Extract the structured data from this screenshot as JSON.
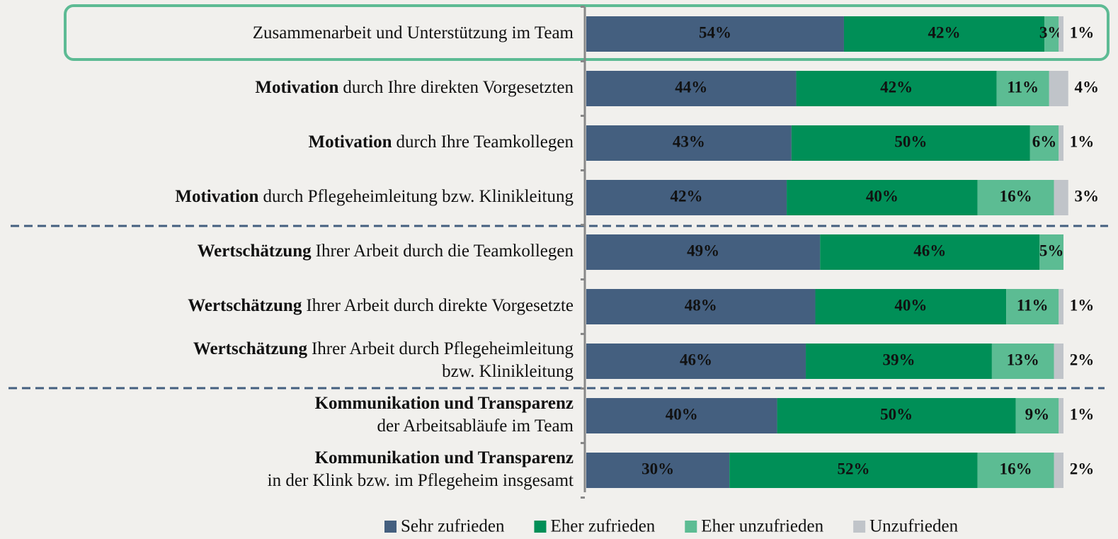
{
  "chart_data": {
    "type": "stacked-bar-horizontal",
    "categories": [
      [
        [
          {
            "text": "Zusammenarbeit und Unterstützung im Team",
            "bold": false
          }
        ]
      ],
      [
        [
          {
            "text": "Motivation",
            "bold": true
          },
          {
            "text": "durch Ihre direkten Vorgesetzten",
            "bold": false
          }
        ]
      ],
      [
        [
          {
            "text": "Motivation",
            "bold": true
          },
          {
            "text": "durch Ihre Teamkollegen",
            "bold": false
          }
        ]
      ],
      [
        [
          {
            "text": "Motivation",
            "bold": true
          },
          {
            "text": "durch Pflegeheimleitung bzw. Klinikleitung",
            "bold": false
          }
        ]
      ],
      [
        [
          {
            "text": "Wertschätzung",
            "bold": true
          },
          {
            "text": "Ihrer Arbeit durch die Teamkollegen",
            "bold": false
          }
        ]
      ],
      [
        [
          {
            "text": "Wertschätzung",
            "bold": true
          },
          {
            "text": "Ihrer Arbeit durch direkte Vorgesetzte",
            "bold": false
          }
        ]
      ],
      [
        [
          {
            "text": "Wertschätzung",
            "bold": true
          },
          {
            "text": "Ihrer Arbeit durch Pflegeheimleitung",
            "bold": false
          }
        ],
        [
          {
            "text": "bzw. Klinikleitung",
            "bold": false
          }
        ]
      ],
      [
        [
          {
            "text": "Kommunikation und Transparenz",
            "bold": true
          }
        ],
        [
          {
            "text": "der Arbeitsabläufe im Team",
            "bold": false
          }
        ]
      ],
      [
        [
          {
            "text": "Kommunikation und Transparenz",
            "bold": true
          }
        ],
        [
          {
            "text": "in der Klink bzw. im Pflegeheim insgesamt",
            "bold": false
          }
        ]
      ]
    ],
    "xlim": [
      0,
      100
    ],
    "series": [
      {
        "name": "Sehr zufrieden",
        "color": "#445f7f",
        "values": [
          54,
          44,
          43,
          42,
          49,
          48,
          46,
          40,
          30
        ],
        "value_labels": [
          "54%",
          "44%",
          "43%",
          "42%",
          "49%",
          "48%",
          "46%",
          "40%",
          "30%"
        ]
      },
      {
        "name": "Eher zufrieden",
        "color": "#008f57",
        "values": [
          42,
          42,
          50,
          40,
          46,
          40,
          39,
          50,
          52
        ],
        "value_labels": [
          "42%",
          "42%",
          "50%",
          "40%",
          "46%",
          "40%",
          "39%",
          "50%",
          "52%"
        ]
      },
      {
        "name": "Eher unzufrieden",
        "color": "#5cbc93",
        "values": [
          3,
          11,
          6,
          16,
          5,
          11,
          13,
          9,
          16
        ],
        "value_labels": [
          "3%",
          "11%",
          "6%",
          "16%",
          "5%",
          "11%",
          "13%",
          "9%",
          "16%"
        ]
      },
      {
        "name": "Unzufrieden",
        "color": "#c0c4c9",
        "values": [
          1,
          4,
          1,
          3,
          null,
          1,
          2,
          1,
          2
        ],
        "value_labels": [
          "1%",
          "4%",
          "1%",
          "3%",
          null,
          "1%",
          "2%",
          "1%",
          "2%"
        ]
      }
    ],
    "legend": "bottom"
  }
}
